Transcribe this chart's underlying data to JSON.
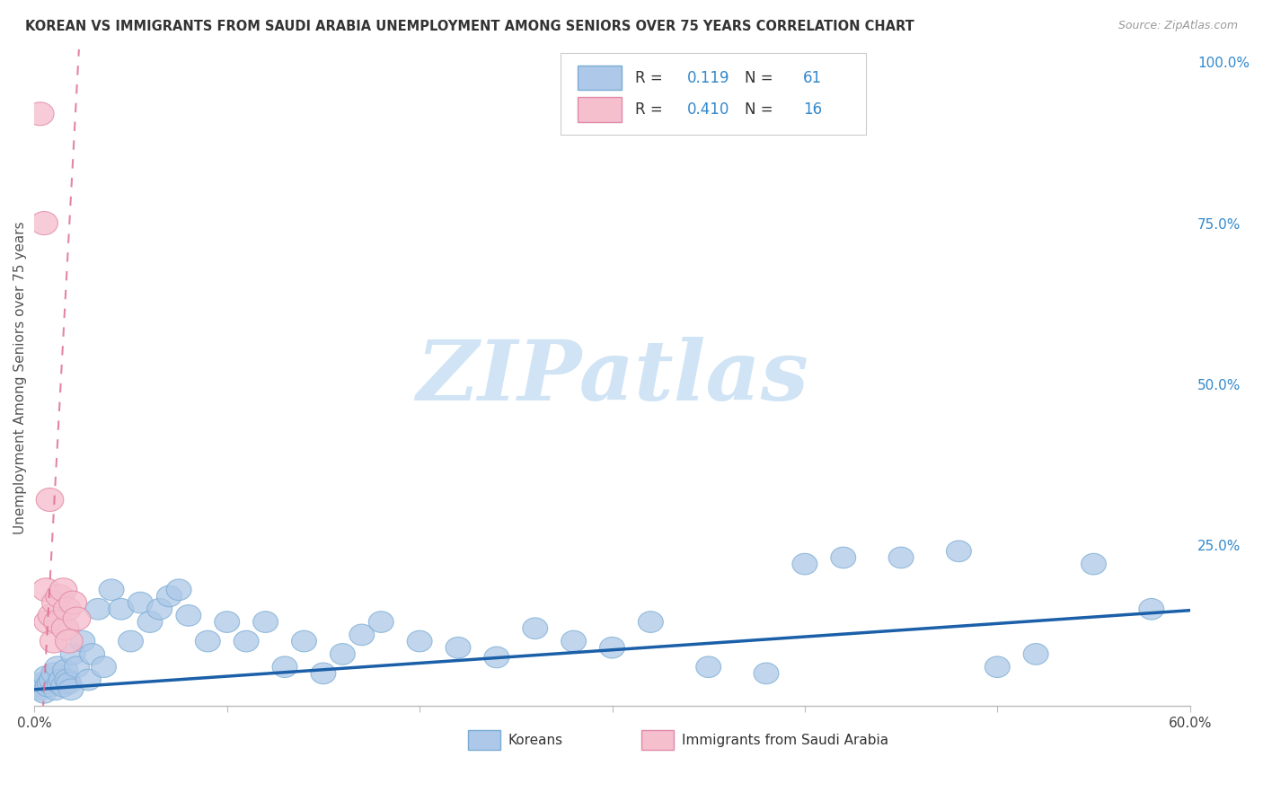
{
  "title": "KOREAN VS IMMIGRANTS FROM SAUDI ARABIA UNEMPLOYMENT AMONG SENIORS OVER 75 YEARS CORRELATION CHART",
  "source": "Source: ZipAtlas.com",
  "ylabel": "Unemployment Among Seniors over 75 years",
  "xlim": [
    0.0,
    0.6
  ],
  "ylim": [
    0.0,
    1.02
  ],
  "ytick_right_vals": [
    0.25,
    0.5,
    0.75,
    1.0
  ],
  "ytick_right_labels": [
    "25.0%",
    "50.0%",
    "75.0%",
    "100.0%"
  ],
  "R_korean": 0.119,
  "N_korean": 61,
  "R_saudi": 0.41,
  "N_saudi": 16,
  "blue_color": "#adc8e8",
  "blue_edge_color": "#7aadd4",
  "blue_line_color": "#1a5fa8",
  "pink_color": "#f5bfce",
  "pink_edge_color": "#e08aa8",
  "pink_line_color": "#e07090",
  "legend_R_N_color": "#3388cc",
  "watermark_text": "ZIPatlas",
  "watermark_color": "#d0e4f5",
  "background_color": "#ffffff",
  "grid_color": "#dddddd",
  "korean_x": [
    0.002,
    0.003,
    0.004,
    0.005,
    0.006,
    0.007,
    0.008,
    0.009,
    0.01,
    0.011,
    0.012,
    0.013,
    0.014,
    0.015,
    0.016,
    0.017,
    0.018,
    0.019,
    0.02,
    0.022,
    0.025,
    0.028,
    0.03,
    0.033,
    0.036,
    0.04,
    0.045,
    0.05,
    0.055,
    0.06,
    0.065,
    0.07,
    0.075,
    0.08,
    0.09,
    0.1,
    0.11,
    0.12,
    0.13,
    0.14,
    0.15,
    0.16,
    0.17,
    0.18,
    0.2,
    0.22,
    0.24,
    0.26,
    0.28,
    0.3,
    0.32,
    0.35,
    0.38,
    0.4,
    0.42,
    0.45,
    0.48,
    0.5,
    0.52,
    0.55,
    0.58
  ],
  "korean_y": [
    0.03,
    0.025,
    0.035,
    0.02,
    0.045,
    0.03,
    0.035,
    0.04,
    0.05,
    0.025,
    0.06,
    0.035,
    0.04,
    0.03,
    0.055,
    0.04,
    0.035,
    0.025,
    0.08,
    0.06,
    0.1,
    0.04,
    0.08,
    0.15,
    0.06,
    0.18,
    0.15,
    0.1,
    0.16,
    0.13,
    0.15,
    0.17,
    0.18,
    0.14,
    0.1,
    0.13,
    0.1,
    0.13,
    0.06,
    0.1,
    0.05,
    0.08,
    0.11,
    0.13,
    0.1,
    0.09,
    0.075,
    0.12,
    0.1,
    0.09,
    0.13,
    0.06,
    0.05,
    0.22,
    0.23,
    0.23,
    0.24,
    0.06,
    0.08,
    0.22,
    0.15
  ],
  "saudi_x": [
    0.003,
    0.005,
    0.006,
    0.007,
    0.008,
    0.009,
    0.01,
    0.011,
    0.012,
    0.013,
    0.015,
    0.016,
    0.017,
    0.018,
    0.02,
    0.022
  ],
  "saudi_y": [
    0.92,
    0.75,
    0.18,
    0.13,
    0.32,
    0.14,
    0.1,
    0.16,
    0.13,
    0.17,
    0.18,
    0.12,
    0.15,
    0.1,
    0.16,
    0.135
  ],
  "korean_trend_x0": 0.0,
  "korean_trend_y0": 0.025,
  "korean_trend_x1": 0.6,
  "korean_trend_y1": 0.148,
  "saudi_trend_slope": 55.0,
  "saudi_trend_intercept": -0.25
}
